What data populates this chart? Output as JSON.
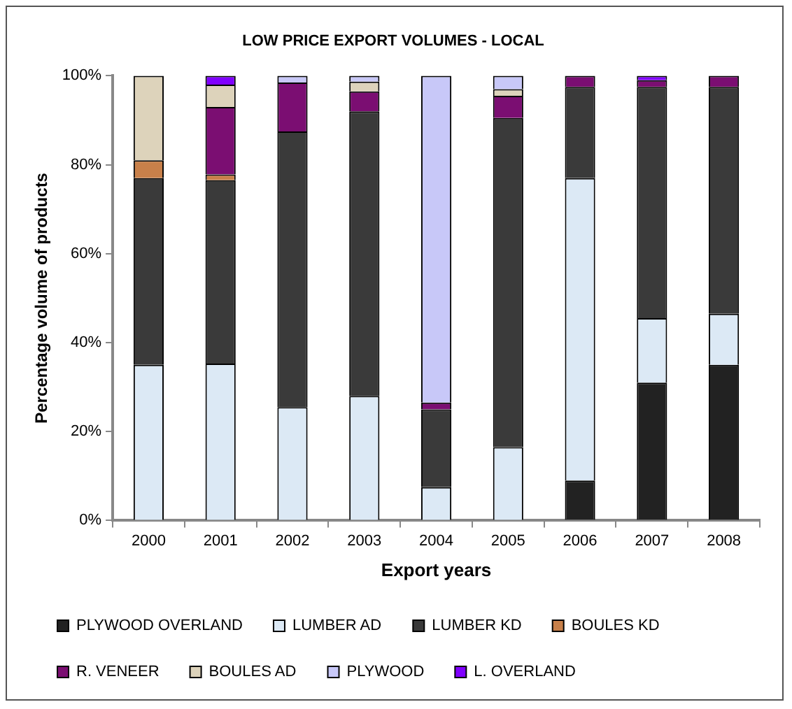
{
  "chart_data": {
    "type": "bar",
    "stacked": true,
    "title": "LOW PRICE EXPORT VOLUMES - LOCAL",
    "xlabel": "Export years",
    "ylabel": "Percentage volume of products",
    "categories": [
      "2000",
      "2001",
      "2002",
      "2003",
      "2004",
      "2005",
      "2006",
      "2007",
      "2008"
    ],
    "series": [
      {
        "name": "PLYWOOD OVERLAND",
        "color": "#222222",
        "values": [
          0,
          0,
          0,
          0,
          0,
          0,
          9,
          31,
          35
        ]
      },
      {
        "name": "LUMBER AD",
        "color": "#dce9f5",
        "values": [
          35,
          35.3,
          25.5,
          28,
          7.5,
          16.5,
          68,
          14.5,
          11.5
        ]
      },
      {
        "name": "LUMBER KD",
        "color": "#3a3a3a",
        "values": [
          42,
          41.2,
          62,
          64,
          17.5,
          74,
          20.5,
          52,
          51
        ]
      },
      {
        "name": "BOULES KD",
        "color": "#c8804a",
        "values": [
          4,
          1.3,
          0,
          0,
          0,
          0,
          0,
          0,
          0
        ]
      },
      {
        "name": "R. VENEER",
        "color": "#7b0e72",
        "values": [
          0,
          15.2,
          11,
          4.5,
          1.5,
          5,
          2.5,
          1.5,
          2.5
        ]
      },
      {
        "name": "BOULES AD",
        "color": "#ddd3bb",
        "values": [
          19,
          5,
          0,
          2.2,
          0,
          1.5,
          0,
          0,
          0
        ]
      },
      {
        "name": "PLYWOOD",
        "color": "#c8c8f8",
        "values": [
          0,
          0,
          1.5,
          1.3,
          73.5,
          3,
          0,
          0,
          0
        ]
      },
      {
        "name": "L. OVERLAND",
        "color": "#8000ff",
        "values": [
          0,
          2,
          0,
          0,
          0,
          0,
          0,
          1,
          0
        ]
      }
    ],
    "ylim": [
      0,
      100
    ],
    "yticks": [
      {
        "value": 0,
        "label": "0%"
      },
      {
        "value": 20,
        "label": "20%"
      },
      {
        "value": 40,
        "label": "40%"
      },
      {
        "value": 60,
        "label": "60%"
      },
      {
        "value": 80,
        "label": "80%"
      },
      {
        "value": 100,
        "label": "100%"
      }
    ],
    "grid": false,
    "legend": "bottom"
  }
}
